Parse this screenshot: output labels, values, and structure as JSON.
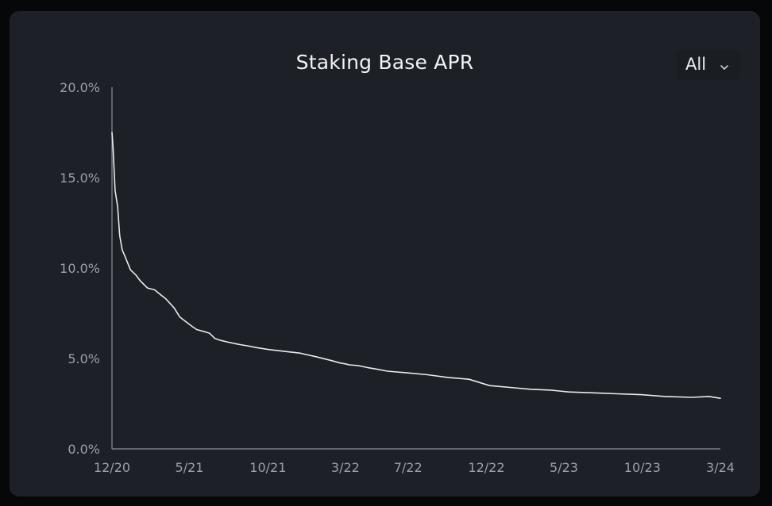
{
  "colors": {
    "background": "#060708",
    "card": "#1d2026",
    "line": "#e8eaee",
    "axis": "#8a9098",
    "text": "#f2f3f5",
    "tick_text": "#9aa0a8"
  },
  "icons": {
    "dropdown": "chevron-down-icon"
  },
  "range_selector": {
    "label": "All"
  },
  "chart_data": {
    "type": "line",
    "title": "Staking Base APR",
    "xlabel": "",
    "ylabel": "",
    "grid": false,
    "legend": "none",
    "y_ticks": [
      "0.0%",
      "5.0%",
      "10.0%",
      "15.0%",
      "20.0%"
    ],
    "y_tick_values": [
      0,
      5,
      10,
      15,
      20
    ],
    "ylim": [
      0,
      20
    ],
    "x_ticks": [
      "12/20",
      "5/21",
      "10/21",
      "3/22",
      "7/22",
      "12/22",
      "5/23",
      "10/23",
      "3/24"
    ],
    "x_tick_dates": [
      "2020-12-01",
      "2021-05-01",
      "2021-10-01",
      "2022-03-01",
      "2022-07-01",
      "2022-12-01",
      "2023-05-01",
      "2023-10-01",
      "2024-03-01"
    ],
    "xlim": [
      "2020-12-01",
      "2024-03-01"
    ],
    "series": [
      {
        "x": [
          "2020-12-01",
          "2020-12-03",
          "2020-12-07",
          "2020-12-12",
          "2020-12-16",
          "2020-12-21",
          "2020-12-27",
          "2021-01-06",
          "2021-01-17",
          "2021-01-25",
          "2021-02-08",
          "2021-02-22",
          "2021-03-07",
          "2021-03-16",
          "2021-04-01",
          "2021-04-12",
          "2021-04-21",
          "2021-05-05",
          "2021-05-15",
          "2021-05-28",
          "2021-06-09",
          "2021-06-20",
          "2021-07-01",
          "2021-07-16",
          "2021-08-02",
          "2021-08-11",
          "2021-08-22",
          "2021-09-09",
          "2021-10-01",
          "2021-11-01",
          "2021-12-02",
          "2022-01-02",
          "2022-01-31",
          "2022-02-19",
          "2022-03-01",
          "2022-03-08",
          "2022-03-27",
          "2022-04-13",
          "2022-05-03",
          "2022-05-22",
          "2022-07-01",
          "2022-08-08",
          "2022-09-17",
          "2022-10-28",
          "2022-12-07",
          "2023-01-16",
          "2023-02-25",
          "2023-04-06",
          "2023-04-22",
          "2023-05-10",
          "2023-06-26",
          "2023-08-12",
          "2023-09-28",
          "2023-11-14",
          "2024-01-05",
          "2024-02-08",
          "2024-03-01"
        ],
        "y": [
          17.5,
          16.7,
          14.3,
          13.4,
          11.8,
          11.0,
          10.6,
          9.9,
          9.6,
          9.3,
          8.9,
          8.8,
          8.5,
          8.3,
          7.8,
          7.3,
          7.1,
          6.8,
          6.6,
          6.5,
          6.4,
          6.1,
          6.0,
          5.9,
          5.8,
          5.75,
          5.7,
          5.6,
          5.5,
          5.4,
          5.3,
          5.1,
          4.9,
          4.75,
          4.7,
          4.65,
          4.6,
          4.5,
          4.4,
          4.3,
          4.2,
          4.1,
          3.95,
          3.85,
          3.5,
          3.4,
          3.3,
          3.25,
          3.2,
          3.15,
          3.1,
          3.05,
          3.0,
          2.9,
          2.85,
          2.9,
          2.8
        ]
      }
    ]
  }
}
